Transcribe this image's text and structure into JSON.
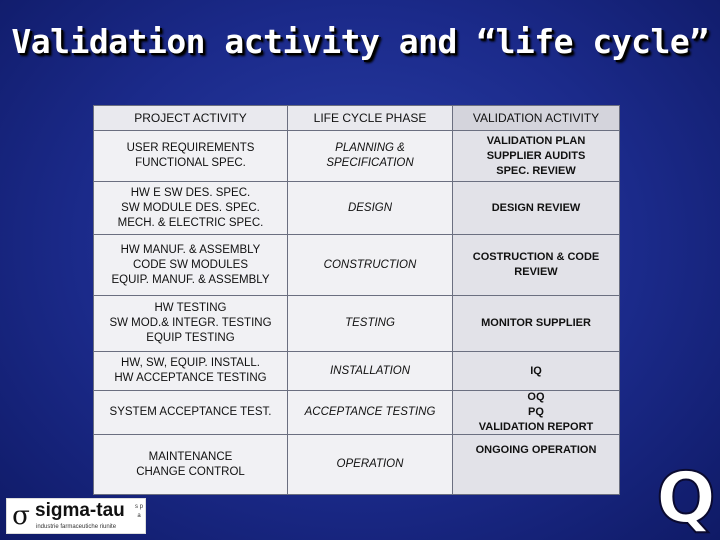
{
  "title": "Validation activity and “life cycle”",
  "table": {
    "headers": [
      "PROJECT ACTIVITY",
      "LIFE CYCLE PHASE",
      "VALIDATION ACTIVITY"
    ],
    "rows": [
      {
        "project": "USER REQUIREMENTS\nFUNCTIONAL SPEC.",
        "phase": "PLANNING &\nSPECIFICATION",
        "validation": "VALIDATION PLAN\nSUPPLIER AUDITS\nSPEC. REVIEW"
      },
      {
        "project": "HW E SW DES. SPEC.\nSW MODULE DES. SPEC.\nMECH. & ELECTRIC SPEC.",
        "phase": "DESIGN",
        "validation": "DESIGN REVIEW"
      },
      {
        "project": "HW MANUF. & ASSEMBLY\nCODE SW MODULES\nEQUIP. MANUF. & ASSEMBLY",
        "phase": "CONSTRUCTION",
        "validation": "COSTRUCTION & CODE\nREVIEW"
      },
      {
        "project": "HW TESTING\nSW MOD.& INTEGR. TESTING\nEQUIP TESTING",
        "phase": "TESTING",
        "validation": "MONITOR SUPPLIER"
      },
      {
        "project": "HW, SW, EQUIP. INSTALL.\nHW ACCEPTANCE TESTING",
        "phase": "INSTALLATION",
        "validation": "IQ"
      },
      {
        "project": "SYSTEM ACCEPTANCE TEST.",
        "phase": "ACCEPTANCE TESTING",
        "validation": "OQ\nPQ\nVALIDATION REPORT"
      },
      {
        "project": "MAINTENANCE\nCHANGE CONTROL",
        "phase": "OPERATION",
        "validation": "ONGOING OPERATION"
      }
    ]
  },
  "logo": {
    "mark": "σ",
    "name": "sigma-tau",
    "subtitle": "industrie farmaceutiche riunite",
    "side": "s p a"
  },
  "corner_letter": "Q"
}
